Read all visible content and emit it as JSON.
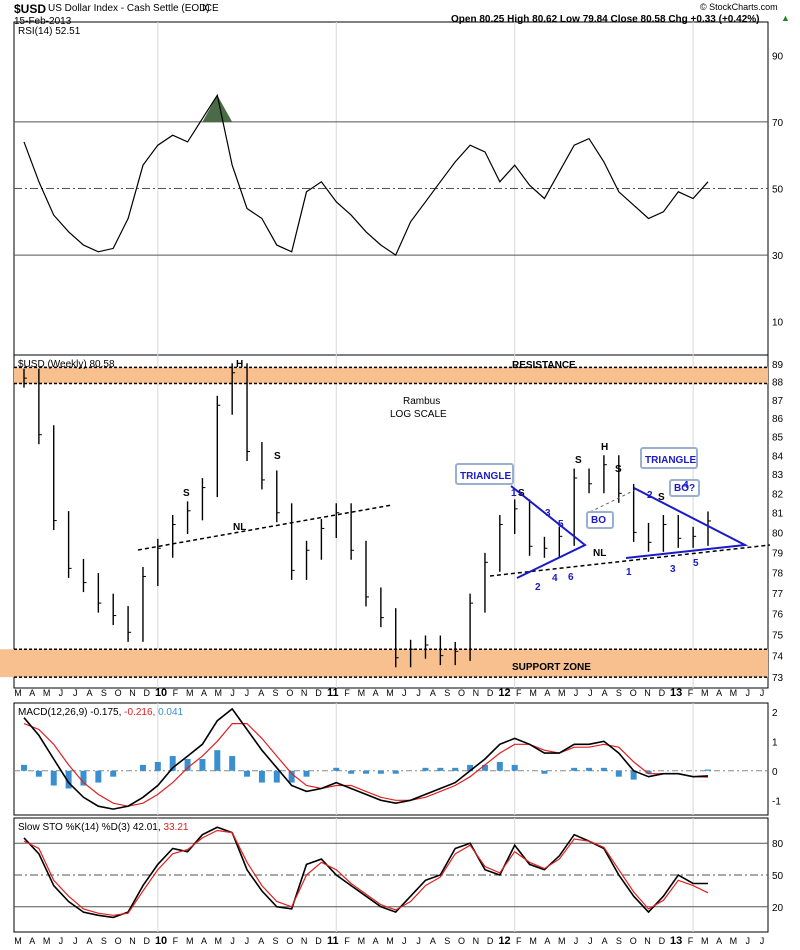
{
  "header": {
    "symbol": "$USD",
    "name": "US Dollar Index - Cash Settle (EOD)",
    "exchange": "ICE",
    "date": "15-Feb-2013",
    "ohlc": "Open 80.25  High 80.62  Low 79.84  Close 80.58  Chg +0.33 (+0.42%)",
    "ohlc_arrow": "▲",
    "copyright": "© StockCharts.com"
  },
  "colors": {
    "price_bar": "#000000",
    "support_resistance": "#f7c08e",
    "pattern_lines": "#1a1ac8",
    "rsi_overbought_fill": "#4a6b45",
    "macd_histogram": "#3a8fd0",
    "signal_line": "#e02020",
    "annotation_border": "#9ab0d0"
  },
  "chart_data": [
    {
      "type": "line",
      "panel": "rsi",
      "legend": "RSI(14) 52.51",
      "ylim": [
        0,
        100
      ],
      "yticks": [
        10,
        30,
        50,
        70,
        90
      ],
      "reference_lines": [
        30,
        50,
        70
      ],
      "x": [
        "2009-04",
        "2009-05",
        "2009-06",
        "2009-07",
        "2009-08",
        "2009-09",
        "2009-10",
        "2009-11",
        "2009-12",
        "2010-01",
        "2010-02",
        "2010-03",
        "2010-04",
        "2010-05",
        "2010-06",
        "2010-07",
        "2010-08",
        "2010-09",
        "2010-10",
        "2010-11",
        "2010-12",
        "2011-01",
        "2011-02",
        "2011-03",
        "2011-04",
        "2011-05",
        "2011-06",
        "2011-07",
        "2011-08",
        "2011-09",
        "2011-10",
        "2011-11",
        "2011-12",
        "2012-01",
        "2012-02",
        "2012-03",
        "2012-04",
        "2012-05",
        "2012-06",
        "2012-07",
        "2012-08",
        "2012-09",
        "2012-10",
        "2012-11",
        "2012-12",
        "2013-01",
        "2013-02"
      ],
      "values": [
        64,
        52,
        42,
        37,
        33,
        31,
        32,
        41,
        57,
        63,
        66,
        64,
        71,
        78,
        57,
        44,
        41,
        33,
        31,
        49,
        52,
        46,
        42,
        37,
        33,
        30,
        40,
        46,
        52,
        58,
        63,
        61,
        52,
        57,
        51,
        47,
        55,
        63,
        65,
        58,
        49,
        45,
        41,
        43,
        49,
        47,
        52
      ]
    },
    {
      "type": "bar",
      "panel": "price",
      "legend": "$USD (Weekly) 80.58",
      "scale": "log",
      "ylim": [
        72.5,
        89.5
      ],
      "yticks": [
        73,
        74,
        75,
        76,
        77,
        78,
        79,
        80,
        81,
        82,
        83,
        84,
        85,
        86,
        87,
        88,
        89
      ],
      "x": [
        "2009-04",
        "2009-05",
        "2009-06",
        "2009-07",
        "2009-08",
        "2009-09",
        "2009-10",
        "2009-11",
        "2009-12",
        "2010-01",
        "2010-02",
        "2010-03",
        "2010-04",
        "2010-05",
        "2010-06",
        "2010-07",
        "2010-08",
        "2010-09",
        "2010-10",
        "2010-11",
        "2010-12",
        "2011-01",
        "2011-02",
        "2011-03",
        "2011-04",
        "2011-05",
        "2011-06",
        "2011-07",
        "2011-08",
        "2011-09",
        "2011-10",
        "2011-11",
        "2011-12",
        "2012-01",
        "2012-02",
        "2012-03",
        "2012-04",
        "2012-05",
        "2012-06",
        "2012-07",
        "2012-08",
        "2012-09",
        "2012-10",
        "2012-11",
        "2012-12",
        "2013-01",
        "2013-02"
      ],
      "values": [
        88.2,
        85.1,
        80.6,
        78.2,
        77.5,
        76.5,
        75.9,
        75.1,
        77.8,
        79.2,
        80.4,
        81.1,
        82.3,
        86.7,
        88.5,
        84.2,
        82.7,
        81.0,
        78.1,
        79.1,
        80.2,
        81.0,
        79.1,
        76.8,
        75.8,
        73.9,
        74.3,
        74.5,
        74.0,
        74.2,
        76.5,
        78.5,
        80.4,
        81.2,
        79.3,
        79.2,
        79.8,
        82.8,
        82.5,
        83.5,
        82.0,
        80.0,
        79.5,
        80.4,
        79.7,
        79.8,
        80.58
      ],
      "annotations": {
        "resistance": "RESISTANCE",
        "support": "SUPPORT ZONE",
        "rambus": "Rambus",
        "log_scale": "LOG SCALE",
        "triangle_1": "TRIANGLE",
        "triangle_2": "TRIANGLE",
        "neckline": "NL",
        "head": "H",
        "shoulder": "S",
        "breakout": "BO",
        "breakout_q": "BO?",
        "wave_labels": [
          "1",
          "2",
          "3",
          "4",
          "5",
          "6"
        ]
      }
    },
    {
      "type": "line",
      "panel": "macd",
      "legend": {
        "label": "MACD(12,26,9)",
        "macd": "-0.175",
        "signal": "-0.216",
        "histogram": "0.041"
      },
      "ylim": [
        -1.5,
        2.3
      ],
      "yticks": [
        -1,
        0,
        1,
        2
      ],
      "series": [
        {
          "name": "MACD",
          "values": [
            1.8,
            1.2,
            0.4,
            -0.4,
            -0.9,
            -1.2,
            -1.3,
            -1.2,
            -0.9,
            -0.5,
            0.1,
            0.5,
            0.9,
            1.7,
            2.1,
            1.4,
            0.7,
            0.1,
            -0.5,
            -0.7,
            -0.6,
            -0.4,
            -0.6,
            -0.8,
            -1.0,
            -1.1,
            -1.0,
            -0.8,
            -0.6,
            -0.4,
            0.0,
            0.4,
            0.9,
            1.1,
            0.9,
            0.6,
            0.6,
            0.9,
            0.9,
            1.0,
            0.6,
            0.0,
            -0.2,
            -0.1,
            -0.1,
            -0.2,
            -0.175
          ]
        },
        {
          "name": "Signal",
          "values": [
            1.6,
            1.4,
            0.9,
            0.2,
            -0.4,
            -0.8,
            -1.1,
            -1.2,
            -1.1,
            -0.8,
            -0.4,
            0.1,
            0.5,
            1.0,
            1.6,
            1.6,
            1.1,
            0.5,
            -0.1,
            -0.5,
            -0.6,
            -0.5,
            -0.5,
            -0.7,
            -0.9,
            -1.0,
            -1.0,
            -0.9,
            -0.7,
            -0.5,
            -0.2,
            0.2,
            0.6,
            0.9,
            0.9,
            0.7,
            0.6,
            0.8,
            0.8,
            0.9,
            0.8,
            0.3,
            -0.1,
            -0.1,
            -0.1,
            -0.2,
            -0.216
          ]
        }
      ]
    },
    {
      "type": "line",
      "panel": "stochastic",
      "legend": {
        "label": "Slow STO %K(14) %D(3)",
        "k": "42.01",
        "d": "33.21"
      },
      "ylim": [
        0,
        100
      ],
      "yticks": [
        20,
        50,
        80
      ],
      "series": [
        {
          "name": "%K",
          "values": [
            85,
            70,
            40,
            25,
            15,
            12,
            10,
            15,
            40,
            60,
            75,
            72,
            88,
            95,
            90,
            55,
            35,
            20,
            18,
            60,
            65,
            50,
            40,
            30,
            20,
            15,
            30,
            45,
            50,
            75,
            80,
            55,
            50,
            78,
            60,
            55,
            68,
            88,
            82,
            75,
            50,
            30,
            15,
            30,
            50,
            42,
            42.01
          ]
        },
        {
          "name": "%D",
          "values": [
            82,
            75,
            45,
            30,
            18,
            14,
            12,
            14,
            35,
            55,
            70,
            74,
            85,
            92,
            90,
            62,
            40,
            25,
            20,
            50,
            62,
            55,
            42,
            32,
            22,
            17,
            25,
            40,
            48,
            70,
            78,
            58,
            52,
            72,
            62,
            56,
            65,
            84,
            82,
            76,
            55,
            34,
            18,
            26,
            45,
            40,
            33.21
          ]
        }
      ]
    }
  ],
  "x_axis": {
    "labels": [
      "M",
      "A",
      "M",
      "J",
      "J",
      "A",
      "S",
      "O",
      "N",
      "D",
      "10",
      "F",
      "M",
      "A",
      "M",
      "J",
      "J",
      "A",
      "S",
      "O",
      "N",
      "D",
      "11",
      "F",
      "M",
      "A",
      "M",
      "J",
      "J",
      "A",
      "S",
      "O",
      "N",
      "D",
      "12",
      "F",
      "M",
      "A",
      "M",
      "J",
      "J",
      "A",
      "S",
      "O",
      "N",
      "D",
      "13",
      "F",
      "M",
      "A",
      "M",
      "J",
      "J"
    ]
  }
}
